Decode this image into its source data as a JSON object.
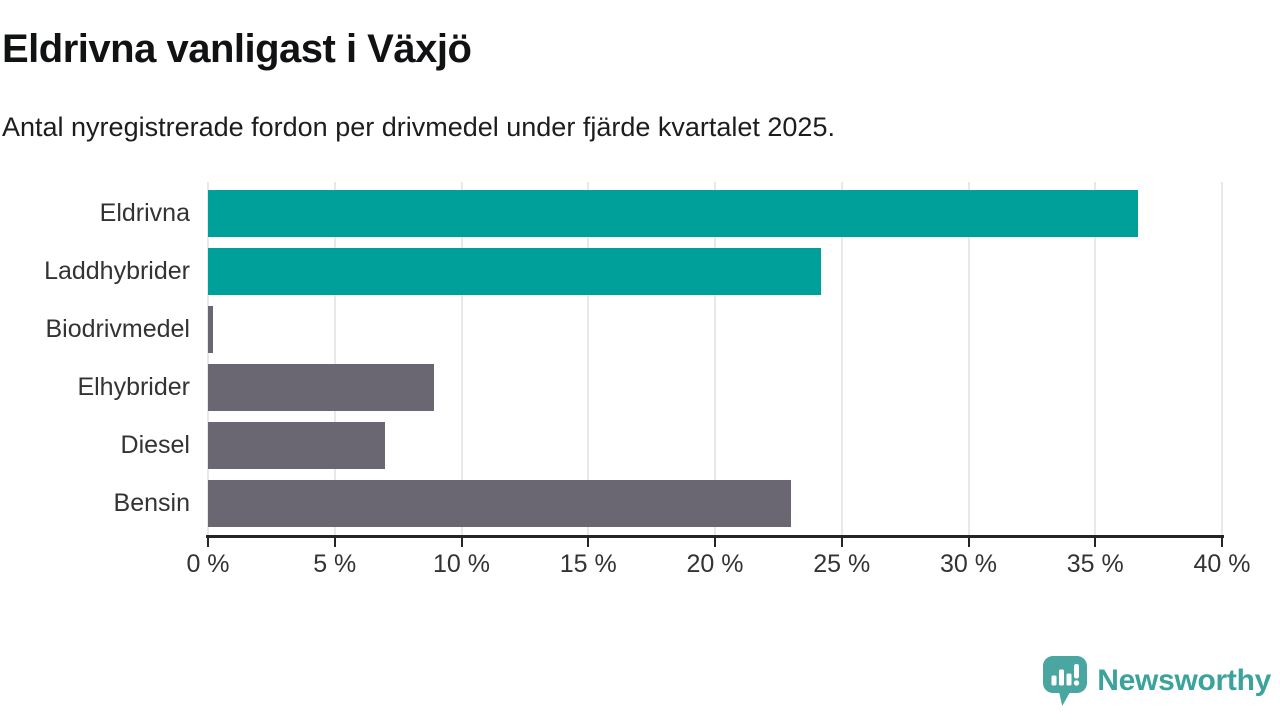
{
  "header": {
    "title": "Eldrivna vanligast i Växjö",
    "subtitle": "Antal nyregistrerade fordon per drivmedel under fjärde kvartalet 2025."
  },
  "chart_data": {
    "type": "bar",
    "orientation": "horizontal",
    "title": "Eldrivna vanligast i Växjö",
    "subtitle": "Antal nyregistrerade fordon per drivmedel under fjärde kvartalet 2025.",
    "categories": [
      "Eldrivna",
      "Laddhybrider",
      "Biodrivmedel",
      "Elhybrider",
      "Diesel",
      "Bensin"
    ],
    "values": [
      36.7,
      24.2,
      0.2,
      8.9,
      7.0,
      23.0
    ],
    "value_unit": "%",
    "xlim": [
      0,
      40
    ],
    "x_ticks": [
      0,
      5,
      10,
      15,
      20,
      25,
      30,
      35,
      40
    ],
    "x_tick_suffix": " %",
    "grid": "vertical-light",
    "legend": "none",
    "bar_colors": [
      "#00a09a",
      "#00a09a",
      "#6a6772",
      "#6a6772",
      "#6a6772",
      "#6a6772"
    ]
  },
  "footer": {
    "brand": "Newsworthy"
  },
  "colors": {
    "accent_teal": "#00a09a",
    "muted_gray": "#6a6772",
    "axis": "#252525",
    "gridline": "#e8e8e8",
    "label_text": "#333333",
    "brand_teal": "#3ba29c"
  }
}
